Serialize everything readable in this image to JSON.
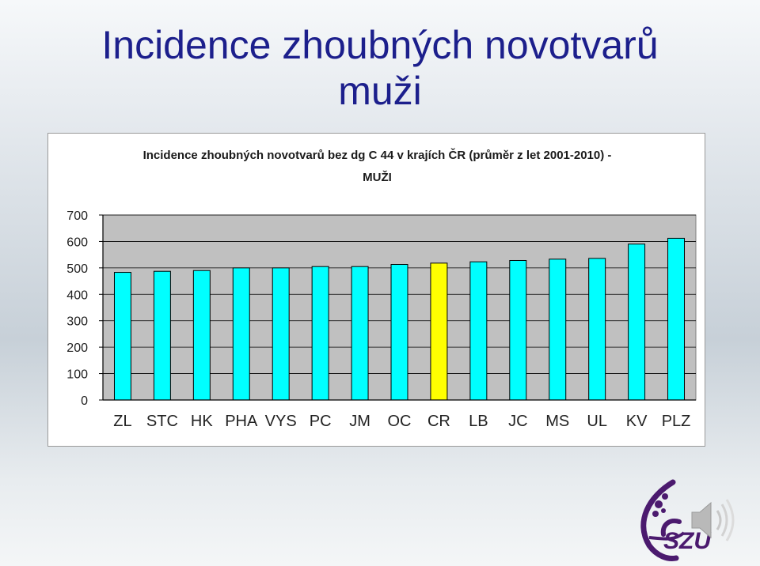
{
  "slide": {
    "title_line1": "Incidence zhoubných novotvarů",
    "title_line2": "muži"
  },
  "chart_data": {
    "type": "bar",
    "title": "Incidence zhoubných novotvarů bez dg C 44 v krajích ČR (průměr z let 2001-2010) -",
    "subtitle": "MUŽI",
    "xlabel": "",
    "ylabel": "",
    "ylim": [
      0,
      700
    ],
    "yticks": [
      0,
      100,
      200,
      300,
      400,
      500,
      600,
      700
    ],
    "grid": true,
    "legend": "none",
    "categories": [
      "ZL",
      "STC",
      "HK",
      "PHA",
      "VYS",
      "PC",
      "JM",
      "OC",
      "CR",
      "LB",
      "JC",
      "MS",
      "UL",
      "KV",
      "PLZ"
    ],
    "values": [
      483,
      487,
      490,
      500,
      500,
      505,
      505,
      513,
      518,
      523,
      528,
      533,
      536,
      590,
      612
    ],
    "bar_color": "#00ffff",
    "highlight_category": "CR",
    "highlight_color": "#ffff00",
    "plot_background": "#c0c0c0"
  },
  "logo": {
    "text": "SZÚ",
    "color": "#4b1a6e"
  },
  "speaker_icon": "speaker-icon"
}
